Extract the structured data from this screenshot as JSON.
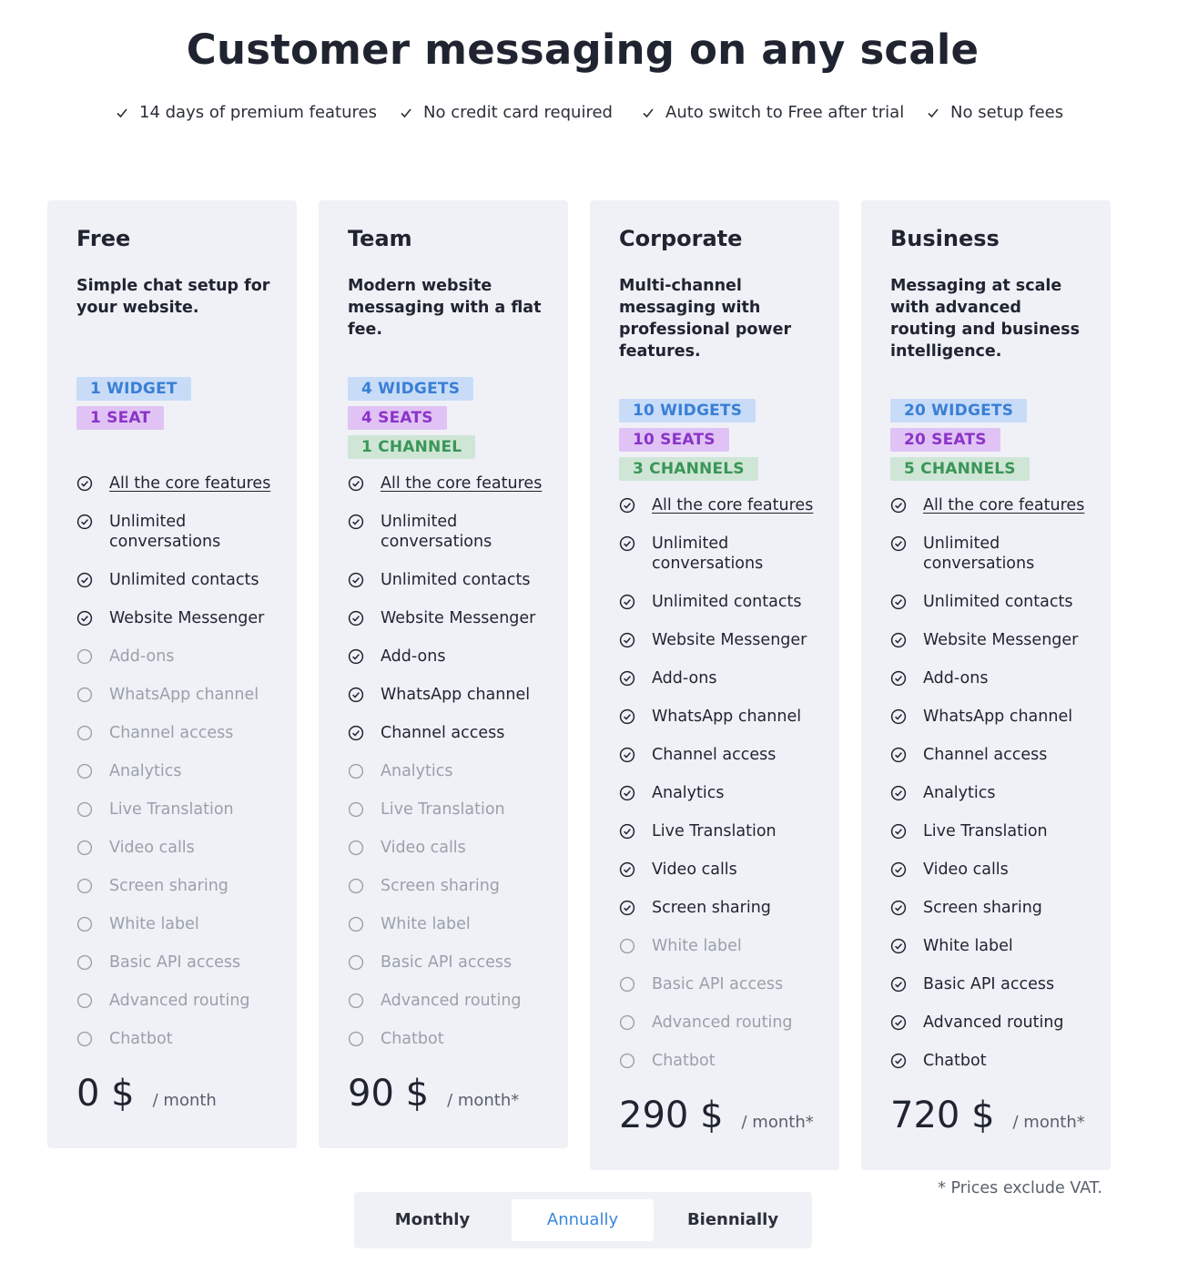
{
  "page": {
    "title": "Customer messaging on any scale",
    "perks": [
      "14 days of premium features",
      "No credit card required",
      "Auto switch to Free after trial",
      "No setup fees"
    ]
  },
  "plans": [
    {
      "name": "Free",
      "description": "Simple chat setup for your website.",
      "badges": [
        {
          "type": "widget",
          "label": "1 WIDGET"
        },
        {
          "type": "seat",
          "label": "1 SEAT"
        }
      ],
      "features": [
        {
          "label": "All the core features",
          "included": true,
          "link": true
        },
        {
          "label": "Unlimited conversations",
          "included": true
        },
        {
          "label": "Unlimited contacts",
          "included": true
        },
        {
          "label": "Website Messenger",
          "included": true
        },
        {
          "label": "Add-ons",
          "included": false
        },
        {
          "label": "WhatsApp channel",
          "included": false
        },
        {
          "label": "Channel access",
          "included": false
        },
        {
          "label": "Analytics",
          "included": false
        },
        {
          "label": "Live Translation",
          "included": false
        },
        {
          "label": "Video calls",
          "included": false
        },
        {
          "label": "Screen sharing",
          "included": false
        },
        {
          "label": "White label",
          "included": false
        },
        {
          "label": "Basic API access",
          "included": false
        },
        {
          "label": "Advanced routing",
          "included": false
        },
        {
          "label": "Chatbot",
          "included": false
        }
      ],
      "price": "0 $",
      "price_unit": "/ month"
    },
    {
      "name": "Team",
      "description": "Modern website messaging with a flat fee.",
      "badges": [
        {
          "type": "widget",
          "label": "4 WIDGETS"
        },
        {
          "type": "seat",
          "label": "4 SEATS"
        },
        {
          "type": "channel",
          "label": "1 CHANNEL"
        }
      ],
      "features": [
        {
          "label": "All the core features",
          "included": true,
          "link": true
        },
        {
          "label": "Unlimited conversations",
          "included": true
        },
        {
          "label": "Unlimited contacts",
          "included": true
        },
        {
          "label": "Website Messenger",
          "included": true
        },
        {
          "label": "Add-ons",
          "included": true
        },
        {
          "label": "WhatsApp channel",
          "included": true
        },
        {
          "label": "Channel access",
          "included": true
        },
        {
          "label": "Analytics",
          "included": false
        },
        {
          "label": "Live Translation",
          "included": false
        },
        {
          "label": "Video calls",
          "included": false
        },
        {
          "label": "Screen sharing",
          "included": false
        },
        {
          "label": "White label",
          "included": false
        },
        {
          "label": "Basic API access",
          "included": false
        },
        {
          "label": "Advanced routing",
          "included": false
        },
        {
          "label": "Chatbot",
          "included": false
        }
      ],
      "price": "90 $",
      "price_unit": "/ month*"
    },
    {
      "name": "Corporate",
      "description": "Multi-channel messaging with professional power features.",
      "badges": [
        {
          "type": "widget",
          "label": "10 WIDGETS"
        },
        {
          "type": "seat",
          "label": "10 SEATS"
        },
        {
          "type": "channel",
          "label": "3 CHANNELS"
        }
      ],
      "features": [
        {
          "label": "All the core features",
          "included": true,
          "link": true
        },
        {
          "label": "Unlimited conversations",
          "included": true
        },
        {
          "label": "Unlimited contacts",
          "included": true
        },
        {
          "label": "Website Messenger",
          "included": true
        },
        {
          "label": "Add-ons",
          "included": true
        },
        {
          "label": "WhatsApp channel",
          "included": true
        },
        {
          "label": "Channel access",
          "included": true
        },
        {
          "label": "Analytics",
          "included": true
        },
        {
          "label": "Live Translation",
          "included": true
        },
        {
          "label": "Video calls",
          "included": true
        },
        {
          "label": "Screen sharing",
          "included": true
        },
        {
          "label": "White label",
          "included": false
        },
        {
          "label": "Basic API access",
          "included": false
        },
        {
          "label": "Advanced routing",
          "included": false
        },
        {
          "label": "Chatbot",
          "included": false
        }
      ],
      "price": "290 $",
      "price_unit": "/ month*"
    },
    {
      "name": "Business",
      "description": "Messaging at scale with advanced routing and business intelligence.",
      "badges": [
        {
          "type": "widget",
          "label": "20 WIDGETS"
        },
        {
          "type": "seat",
          "label": "20 SEATS"
        },
        {
          "type": "channel",
          "label": "5 CHANNELS"
        }
      ],
      "features": [
        {
          "label": "All the core features",
          "included": true,
          "link": true
        },
        {
          "label": "Unlimited conversations",
          "included": true
        },
        {
          "label": "Unlimited contacts",
          "included": true
        },
        {
          "label": "Website Messenger",
          "included": true
        },
        {
          "label": "Add-ons",
          "included": true
        },
        {
          "label": "WhatsApp channel",
          "included": true
        },
        {
          "label": "Channel access",
          "included": true
        },
        {
          "label": "Analytics",
          "included": true
        },
        {
          "label": "Live Translation",
          "included": true
        },
        {
          "label": "Video calls",
          "included": true
        },
        {
          "label": "Screen sharing",
          "included": true
        },
        {
          "label": "White label",
          "included": true
        },
        {
          "label": "Basic API access",
          "included": true
        },
        {
          "label": "Advanced routing",
          "included": true
        },
        {
          "label": "Chatbot",
          "included": true
        }
      ],
      "price": "720 $",
      "price_unit": "/ month*"
    }
  ],
  "vat_note": "* Prices exclude VAT.",
  "billing_toggle": {
    "options": [
      "Monthly",
      "Annually",
      "Biennially"
    ],
    "selected": "Annually"
  },
  "icons": {
    "perk": "check-icon",
    "included": "check-circle-icon",
    "excluded": "empty-circle-icon"
  },
  "colors": {
    "text": "#1f2430",
    "muted": "#9aa0aa",
    "card_bg": "#eff1f7",
    "accent": "#3a87d9",
    "widget_badge_bg": "#c8dcf8",
    "widget_badge_text": "#3a7fd6",
    "seat_badge_bg": "#e0c3f4",
    "seat_badge_text": "#8b34c9",
    "channel_badge_bg": "#cfe6d6",
    "channel_badge_text": "#3a9657"
  }
}
